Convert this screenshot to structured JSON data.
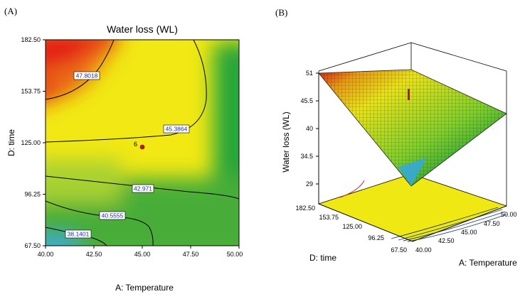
{
  "panel_a": {
    "tag": "(A)"
  },
  "panel_b": {
    "tag": "(B)"
  },
  "chart_data": [
    {
      "type": "contour",
      "title": "Water loss (WL)",
      "xlabel": "A: Temperature",
      "ylabel": "D: time",
      "xlim": [
        40.0,
        50.0
      ],
      "ylim": [
        67.5,
        182.5
      ],
      "x_ticks": [
        "40.00",
        "42.50",
        "45.00",
        "47.50",
        "50.00"
      ],
      "y_ticks": [
        "67.50",
        "96.25",
        "125.00",
        "153.75",
        "182.50"
      ],
      "contours": [
        {
          "label": "47.8018",
          "value": 47.8018
        },
        {
          "label": "45.3864",
          "value": 45.3864
        },
        {
          "label": "42.971",
          "value": 42.971
        },
        {
          "label": "40.5555",
          "value": 40.5555
        },
        {
          "label": "38.1401",
          "value": 38.1401
        }
      ],
      "center_point": {
        "x": 45.0,
        "y": 125.0,
        "label": "6"
      },
      "colors": {
        "high": "#e8251b",
        "mid": "#f2ee12",
        "low": "#1fa53a",
        "min": "#3aa9e6"
      }
    },
    {
      "type": "surface3d",
      "zlabel": "Water loss (WL)",
      "xlabel": "A: Temperature",
      "ylabel": "D: time",
      "zlim": [
        29,
        51
      ],
      "z_ticks": [
        "29",
        "34.5",
        "40",
        "45.5",
        "51"
      ],
      "x_ticks": [
        "40.00",
        "42.50",
        "45.00",
        "47.50",
        "50.00"
      ],
      "y_ticks": [
        "67.50",
        "96.25",
        "125.00",
        "153.75",
        "182.50"
      ],
      "corners": {
        "t40_d182": 51,
        "t50_d182": 47,
        "t50_d67": 41,
        "t40_d67": 30
      }
    }
  ]
}
